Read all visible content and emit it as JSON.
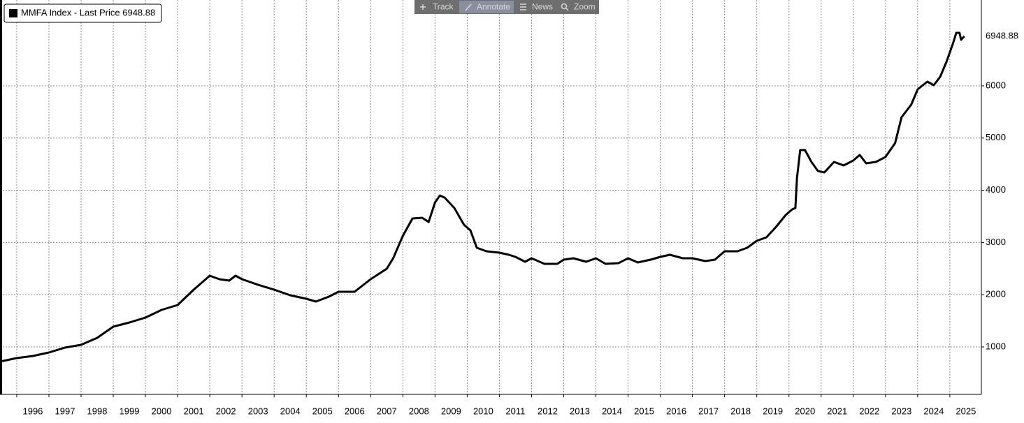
{
  "toolbar": [
    "Track",
    "Annotate",
    "News",
    "Zoom"
  ],
  "chart_data": {
    "type": "line",
    "last_price": 6948.88,
    "x": [
      1995.48,
      1996.0,
      1996.5,
      1997.0,
      1997.5,
      1998.0,
      1998.5,
      1999.0,
      1999.5,
      2000.0,
      2000.5,
      2001.0,
      2001.5,
      2002.0,
      2002.3,
      2002.6,
      2002.8,
      2003.0,
      2003.5,
      2004.0,
      2004.5,
      2005.0,
      2005.3,
      2005.7,
      2006.0,
      2006.5,
      2007.0,
      2007.5,
      2007.7,
      2008.0,
      2008.3,
      2008.6,
      2008.8,
      2009.0,
      2009.15,
      2009.3,
      2009.6,
      2009.9,
      2010.1,
      2010.3,
      2010.6,
      2011.0,
      2011.3,
      2011.5,
      2011.8,
      2012.0,
      2012.4,
      2012.8,
      2013.0,
      2013.3,
      2013.7,
      2014.0,
      2014.3,
      2014.7,
      2015.0,
      2015.3,
      2015.7,
      2016.0,
      2016.3,
      2016.7,
      2017.0,
      2017.4,
      2017.7,
      2018.0,
      2018.4,
      2018.7,
      2019.0,
      2019.3,
      2019.6,
      2019.9,
      2020.1,
      2020.2,
      2020.25,
      2020.35,
      2020.5,
      2020.7,
      2020.9,
      2021.1,
      2021.4,
      2021.7,
      2022.0,
      2022.2,
      2022.4,
      2022.7,
      2023.0,
      2023.3,
      2023.5,
      2023.8,
      2024.0,
      2024.3,
      2024.5,
      2024.7,
      2024.9,
      2025.1,
      2025.2,
      2025.3,
      2025.35,
      2025.45
    ],
    "series": [
      {
        "name": "MMFA Index - Last Price",
        "color": "#000000",
        "values": [
          719,
          786,
          826,
          893,
          987,
          1040,
          1174,
          1388,
          1468,
          1561,
          1709,
          1802,
          2096,
          2364,
          2297,
          2270,
          2364,
          2297,
          2190,
          2096,
          1989,
          1922,
          1869,
          1963,
          2056,
          2056,
          2297,
          2497,
          2698,
          3126,
          3460,
          3473,
          3393,
          3767,
          3900,
          3860,
          3660,
          3340,
          3233,
          2898,
          2832,
          2805,
          2765,
          2725,
          2631,
          2698,
          2591,
          2591,
          2671,
          2698,
          2631,
          2698,
          2591,
          2604,
          2698,
          2618,
          2671,
          2725,
          2765,
          2698,
          2698,
          2644,
          2671,
          2832,
          2832,
          2898,
          3032,
          3099,
          3300,
          3527,
          3634,
          3660,
          4235,
          4770,
          4770,
          4543,
          4369,
          4342,
          4543,
          4476,
          4570,
          4676,
          4516,
          4543,
          4637,
          4904,
          5398,
          5639,
          5933,
          6080,
          6013,
          6174,
          6468,
          6816,
          7016,
          7016,
          6882,
          6949
        ]
      }
    ],
    "xlim": [
      1995.48,
      2025.98
    ],
    "xticks": [
      1996,
      1997,
      1998,
      1999,
      2000,
      2001,
      2002,
      2003,
      2004,
      2005,
      2006,
      2007,
      2008,
      2009,
      2010,
      2011,
      2012,
      2013,
      2014,
      2015,
      2016,
      2017,
      2018,
      2019,
      2020,
      2021,
      2022,
      2023,
      2024,
      2025
    ],
    "ylim": [
      91,
      7644
    ],
    "yticks": [
      1000,
      2000,
      3000,
      4000,
      5000,
      6000
    ],
    "grid": true
  }
}
